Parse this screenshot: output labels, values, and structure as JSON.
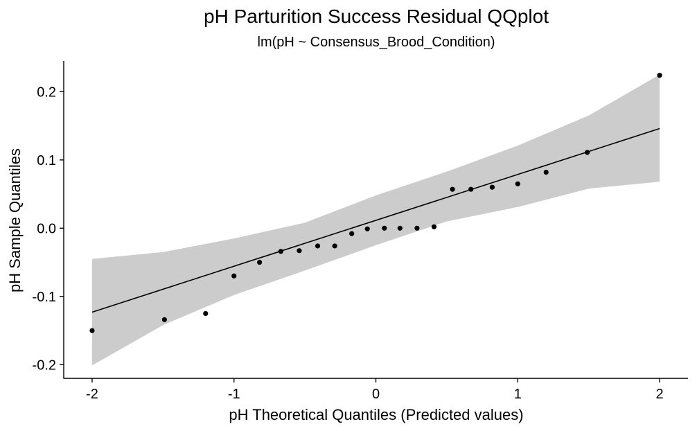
{
  "chart_data": {
    "type": "scatter",
    "title": "pH Parturition Success Residual QQplot",
    "subtitle": "lm(pH ~ Consensus_Brood_Condition)",
    "xlabel": "pH Theoretical Quantiles (Predicted values)",
    "ylabel": "pH Sample Quantiles",
    "xlim": [
      -2.2,
      2.2
    ],
    "ylim": [
      -0.22,
      0.245
    ],
    "xticks": [
      -2,
      -1,
      0,
      1,
      2
    ],
    "xtick_labels": [
      "-2",
      "-1",
      "0",
      "1",
      "2"
    ],
    "yticks": [
      -0.2,
      -0.1,
      0.0,
      0.1,
      0.2
    ],
    "ytick_labels": [
      "-0.2",
      "-0.1",
      "0.0",
      "0.1",
      "0.2"
    ],
    "grid": false,
    "points": [
      {
        "x": -2.0,
        "y": -0.15
      },
      {
        "x": -1.49,
        "y": -0.134
      },
      {
        "x": -1.2,
        "y": -0.125
      },
      {
        "x": -1.0,
        "y": -0.07
      },
      {
        "x": -0.82,
        "y": -0.05
      },
      {
        "x": -0.67,
        "y": -0.034
      },
      {
        "x": -0.54,
        "y": -0.033
      },
      {
        "x": -0.41,
        "y": -0.026
      },
      {
        "x": -0.29,
        "y": -0.026
      },
      {
        "x": -0.17,
        "y": -0.008
      },
      {
        "x": -0.06,
        "y": -0.001
      },
      {
        "x": 0.06,
        "y": 0.0
      },
      {
        "x": 0.17,
        "y": 0.0
      },
      {
        "x": 0.29,
        "y": 0.0
      },
      {
        "x": 0.41,
        "y": 0.002
      },
      {
        "x": 0.54,
        "y": 0.057
      },
      {
        "x": 0.67,
        "y": 0.057
      },
      {
        "x": 0.82,
        "y": 0.06
      },
      {
        "x": 1.0,
        "y": 0.065
      },
      {
        "x": 1.2,
        "y": 0.082
      },
      {
        "x": 1.49,
        "y": 0.111
      },
      {
        "x": 2.0,
        "y": 0.224
      }
    ],
    "reference_line": {
      "x": [
        -2,
        2
      ],
      "y": [
        -0.123,
        0.146
      ]
    },
    "confidence_band": {
      "x": [
        -2.0,
        -1.5,
        -1.0,
        -0.5,
        0.0,
        0.5,
        1.0,
        1.5,
        2.0
      ],
      "upper": [
        -0.045,
        -0.035,
        -0.015,
        0.008,
        0.048,
        0.083,
        0.121,
        0.165,
        0.225
      ],
      "lower": [
        -0.201,
        -0.142,
        -0.098,
        -0.062,
        -0.025,
        0.01,
        0.031,
        0.058,
        0.068
      ]
    },
    "colors": {
      "points": "#000000",
      "line": "#000000",
      "band": "#cccccc",
      "axis": "#000000"
    }
  }
}
